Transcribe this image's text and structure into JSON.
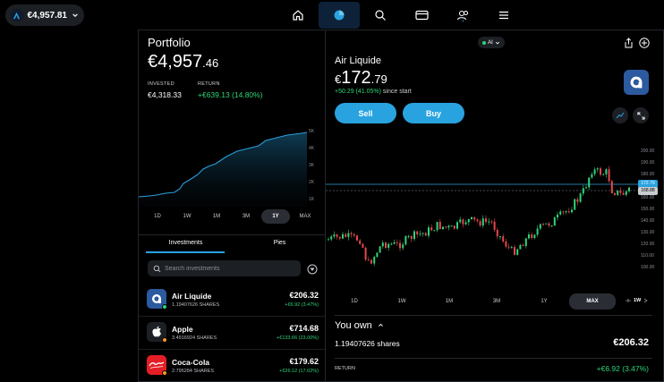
{
  "account": {
    "value": "€4,957.81"
  },
  "nav": [
    {
      "name": "nav-home",
      "icon": "home-icon"
    },
    {
      "name": "nav-portfolio",
      "icon": "pie-chart-icon",
      "active": true
    },
    {
      "name": "nav-search",
      "icon": "search-icon"
    },
    {
      "name": "nav-card",
      "icon": "card-icon"
    },
    {
      "name": "nav-community",
      "icon": "people-icon"
    },
    {
      "name": "nav-menu",
      "icon": "menu-icon"
    }
  ],
  "portfolio": {
    "title": "Portfolio",
    "value_main": "€4,957",
    "value_dec": ".46",
    "invested_label": "INVESTED",
    "invested_value": "€4,318.33",
    "return_label": "RETURN",
    "return_value": "+€639.13 (14.80%)",
    "chart_y_labels": [
      "5K",
      "4K",
      "3K",
      "2K",
      "1K"
    ],
    "ranges": [
      "1D",
      "1W",
      "1M",
      "3M",
      "1Y",
      "MAX"
    ],
    "active_range": "1Y"
  },
  "tabs": {
    "investments": "Investments",
    "pies": "Pies"
  },
  "search": {
    "placeholder": "Search investments"
  },
  "investments": [
    {
      "name": "Air Liquide",
      "shares": "1.19407626 SHARES",
      "value": "€206.32",
      "change": "+€6.92 (3.47%)",
      "logo_color": "#2c5a9e",
      "dot_color": "#2ed47a"
    },
    {
      "name": "Apple",
      "shares": "3.4916924 SHARES",
      "value": "€714.68",
      "change": "+€133.66 (23.00%)",
      "logo_color": "#1c1f24",
      "dot_color": "#f59a23"
    },
    {
      "name": "Coca-Cola",
      "shares": "2.795284 SHARES",
      "value": "€179.62",
      "change": "+€26.12 (17.02%)",
      "logo_color": "#e41e26",
      "dot_color": "#f59a23"
    }
  ],
  "stock": {
    "ai_label": "AI",
    "name": "Air Liquide",
    "price_cur": "€",
    "price_main": "172",
    "price_dec": ".79",
    "change": "+50.29 (41.05%)",
    "since": "since start",
    "sell_label": "Sell",
    "buy_label": "Buy",
    "price_tag_current": "172.79",
    "price_tag_avg": "168.88",
    "y_labels": [
      "200.00",
      "190.00",
      "180.00",
      "170.00",
      "160.00",
      "150.00",
      "140.00",
      "130.00",
      "120.00",
      "110.00",
      "100.00"
    ],
    "ranges": [
      "1D",
      "1W",
      "1M",
      "3M",
      "1Y",
      "MAX"
    ],
    "active_range": "MAX",
    "interval_label": "1W"
  },
  "own": {
    "title": "You own",
    "shares": "1.19407626 shares",
    "value": "€206.32",
    "return_label": "RETURN",
    "return_value": "+€6.92 (3.47%)"
  }
}
